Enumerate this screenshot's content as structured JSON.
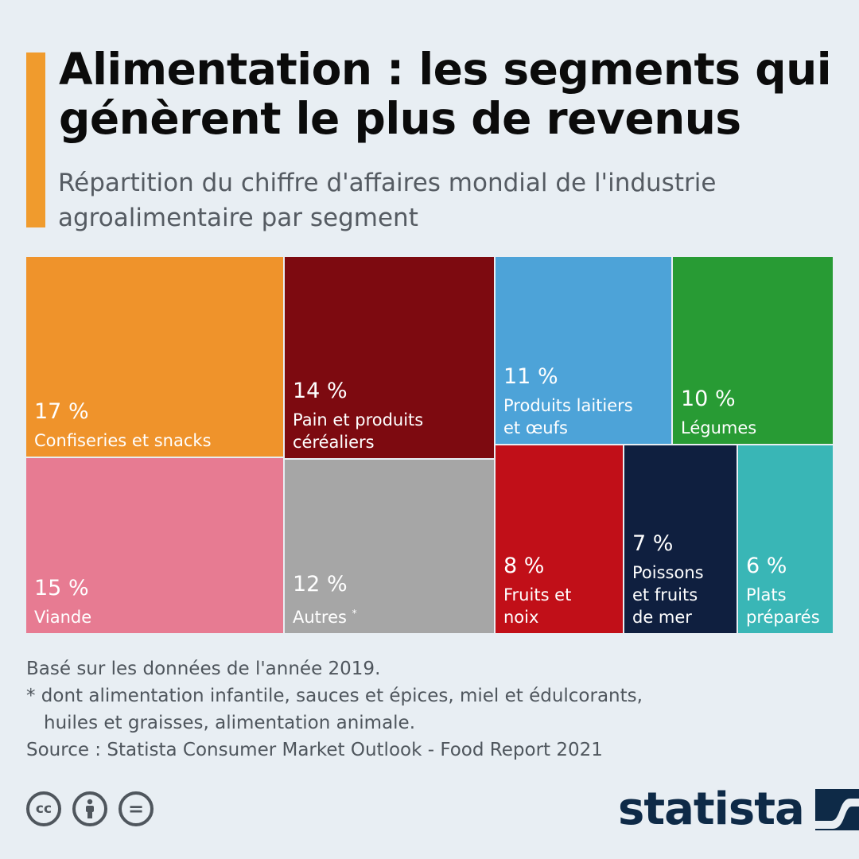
{
  "title": "Alimentation : les segments qui génèrent le plus de revenus",
  "subtitle": "Répartition du chiffre d'affaires mondial de l'industrie agroalimentaire par segment",
  "chart_data": {
    "type": "treemap",
    "title": "Alimentation : les segments qui génèrent le plus de revenus",
    "subtitle": "Répartition du chiffre d'affaires mondial de l'industrie agroalimentaire par segment",
    "unit": "%",
    "segments": [
      {
        "name": "Confiseries et snacks",
        "value": 17,
        "label": "17 %",
        "color": "#ef932b"
      },
      {
        "name": "Viande",
        "value": 15,
        "label": "15 %",
        "color": "#e77b92"
      },
      {
        "name": "Pain et produits céréaliers",
        "value": 14,
        "label": "14 %",
        "color": "#7d0a10"
      },
      {
        "name": "Autres",
        "value": 12,
        "label": "12 %",
        "color": "#a6a6a6",
        "footnote_marker": "*"
      },
      {
        "name": "Produits laitiers et œufs",
        "value": 11,
        "label": "11 %",
        "color": "#4da3d8"
      },
      {
        "name": "Légumes",
        "value": 10,
        "label": "10 %",
        "color": "#289b34"
      },
      {
        "name": "Fruits et noix",
        "value": 8,
        "label": "8 %",
        "color": "#c10f18"
      },
      {
        "name": "Poissons et fruits de mer",
        "value": 7,
        "label": "7 %",
        "color": "#0f1f3f"
      },
      {
        "name": "Plats préparés",
        "value": 6,
        "label": "6 %",
        "color": "#39b6b6"
      }
    ]
  },
  "footnotes": {
    "basis": "Basé sur les données de l'année 2019.",
    "asterisk_line1": "* dont alimentation infantile, sauces et épices, miel et édulcorants,",
    "asterisk_line2": "huiles et graisses, alimentation animale.",
    "source": "Source : Statista Consumer Market Outlook - Food Report 2021"
  },
  "license_icons": [
    "cc-icon",
    "attribution-icon",
    "no-derivatives-icon"
  ],
  "license_glyphs": {
    "cc": "cc",
    "by": "i",
    "nd": "="
  },
  "brand": {
    "name": "statista",
    "colors": {
      "accent": "#f09b2d",
      "brand": "#0e2a47"
    }
  }
}
